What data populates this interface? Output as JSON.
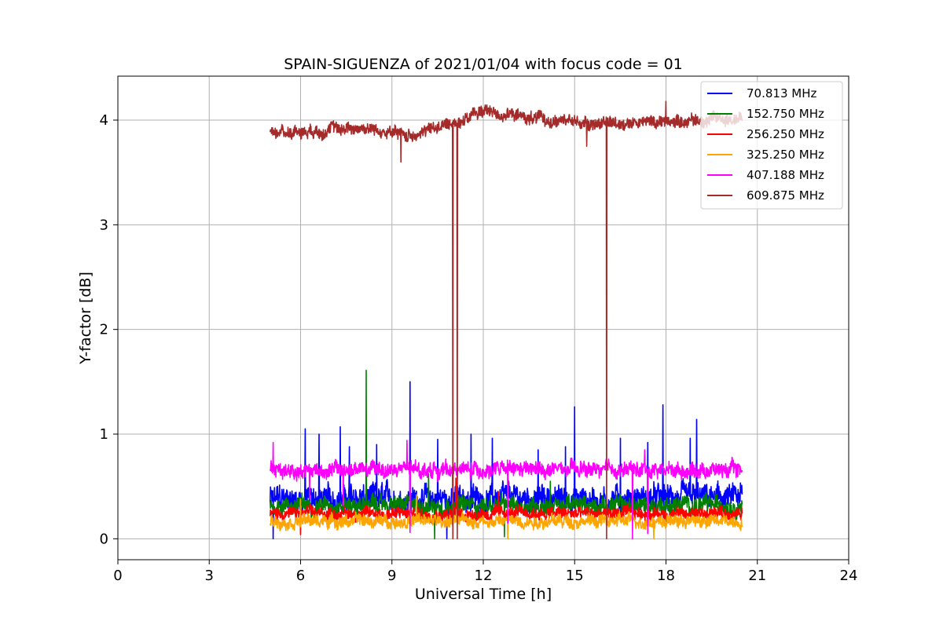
{
  "chart_data": {
    "type": "line",
    "title": "SPAIN-SIGUENZA of 2021/01/04 with focus code = 01",
    "xlabel": "Universal Time [h]",
    "ylabel": "Y-factor [dB]",
    "xlim": [
      0,
      24
    ],
    "ylim": [
      -0.2,
      4.42
    ],
    "xticks": [
      "0",
      "3",
      "6",
      "9",
      "12",
      "15",
      "18",
      "21",
      "24"
    ],
    "yticks": [
      "0",
      "1",
      "2",
      "3",
      "4"
    ],
    "grid": true,
    "legend_position": "top-right",
    "x_range_of_data": [
      5.0,
      20.5
    ],
    "series": [
      {
        "name": " 70.813 MHz",
        "color": "#0000ff",
        "mean": 0.38,
        "noise": 0.1,
        "spikes": [
          [
            6.15,
            1.05
          ],
          [
            6.6,
            1.0
          ],
          [
            7.3,
            1.07
          ],
          [
            7.6,
            0.88
          ],
          [
            8.5,
            0.9
          ],
          [
            9.6,
            1.5
          ],
          [
            10.5,
            0.95
          ],
          [
            11.6,
            1.0
          ],
          [
            12.3,
            0.96
          ],
          [
            13.8,
            0.85
          ],
          [
            14.7,
            0.88
          ],
          [
            15.0,
            1.26
          ],
          [
            16.5,
            0.96
          ],
          [
            17.4,
            0.92
          ],
          [
            17.9,
            1.28
          ],
          [
            18.8,
            0.96
          ],
          [
            19.0,
            1.14
          ]
        ],
        "dips": [
          [
            5.1,
            0.0
          ],
          [
            10.8,
            0.0
          ]
        ]
      },
      {
        "name": "152.750 MHz",
        "color": "#008000",
        "mean": 0.32,
        "noise": 0.07,
        "spikes": [
          [
            8.15,
            1.61
          ],
          [
            10.2,
            0.62
          ],
          [
            14.2,
            0.55
          ]
        ],
        "dips": [
          [
            10.4,
            0.0
          ],
          [
            12.7,
            0.02
          ]
        ]
      },
      {
        "name": "256.250 MHz",
        "color": "#ff0000",
        "mean": 0.24,
        "noise": 0.05,
        "spikes": [
          [
            11.1,
            0.58
          ],
          [
            12.5,
            0.45
          ]
        ],
        "dips": [
          [
            6.0,
            0.04
          ]
        ]
      },
      {
        "name": "325.250 MHz",
        "color": "#ffa500",
        "mean": 0.17,
        "noise": 0.05,
        "spikes": [
          [
            6.0,
            0.38
          ],
          [
            9.8,
            0.42
          ]
        ],
        "dips": [
          [
            12.8,
            0.0
          ],
          [
            17.6,
            0.0
          ]
        ]
      },
      {
        "name": "407.188 MHz",
        "color": "#ff00ff",
        "mean": 0.66,
        "noise": 0.06,
        "spikes": [
          [
            5.1,
            0.92
          ],
          [
            9.5,
            0.94
          ],
          [
            17.3,
            0.85
          ]
        ],
        "dips": [
          [
            6.3,
            0.38
          ],
          [
            7.4,
            0.32
          ],
          [
            9.6,
            0.06
          ],
          [
            11.0,
            0.02
          ],
          [
            12.8,
            0.15
          ],
          [
            16.9,
            0.0
          ],
          [
            17.4,
            0.05
          ]
        ]
      },
      {
        "name": "609.875 MHz",
        "color": "#a52a2a",
        "mean": 3.97,
        "noise": 0.05,
        "trend": [
          [
            5.0,
            3.88
          ],
          [
            8.0,
            3.93
          ],
          [
            9.5,
            3.85
          ],
          [
            11.0,
            3.97
          ],
          [
            12.0,
            4.09
          ],
          [
            14.0,
            4.0
          ],
          [
            16.0,
            3.97
          ],
          [
            18.0,
            3.99
          ],
          [
            20.5,
            4.02
          ]
        ],
        "spikes": [
          [
            18.0,
            4.18
          ]
        ],
        "dips": [
          [
            9.3,
            3.6
          ],
          [
            11.0,
            0.0
          ],
          [
            11.15,
            0.0
          ],
          [
            16.05,
            0.0
          ],
          [
            15.4,
            3.75
          ]
        ]
      }
    ]
  }
}
